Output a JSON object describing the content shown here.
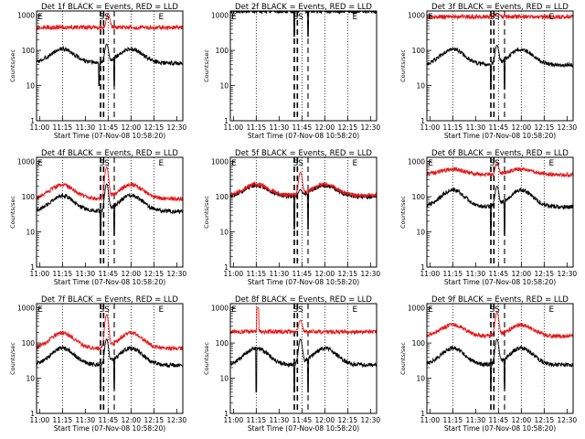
{
  "page": {
    "layout": "3x3 grid of detector count-rate time series"
  },
  "colors": {
    "events": "#000000",
    "lld": "#e41a1c",
    "frame": "#000000",
    "background": "#ffffff"
  },
  "shared": {
    "ylabel": "Counts/sec",
    "xlabel": "Start Time (07-Nov-08 10:58:20)",
    "x_tick_labels": [
      "11:00",
      "11:15",
      "11:30",
      "11:45",
      "12:00",
      "12:15",
      "12:30"
    ],
    "y_tick_labels": [
      "1",
      "10",
      "100",
      "1000"
    ],
    "marker_labels": [
      "E",
      "SS",
      "E"
    ]
  },
  "chart_data": [
    {
      "type": "line",
      "title": "Det 1f BLACK = Events, RED = LLD",
      "xlim_min": [
        0,
        96
      ],
      "ylim": [
        1,
        1000
      ],
      "yscale": "log",
      "dotted_v_lines_min": [
        17,
        47,
        62,
        77
      ],
      "dashed_v_lines_min": [
        42,
        44,
        51
      ],
      "series": [
        {
          "name": "Events",
          "color": "#000000",
          "shape": "wave",
          "base": 60,
          "amp": 0.25,
          "hump_min": [
            17,
            62
          ],
          "peak_min": 46,
          "peak_val": 150,
          "dip_min": [
            41,
            51
          ],
          "dip_val": 10
        },
        {
          "name": "LLD",
          "color": "#e41a1c",
          "shape": "flat",
          "base": 450,
          "peak_min": 47,
          "peak_val": 1100
        }
      ]
    },
    {
      "type": "line",
      "title": "Det 2f BLACK = Events, RED = LLD",
      "xlim_min": [
        0,
        96
      ],
      "ylim": [
        1,
        1000
      ],
      "yscale": "log",
      "dotted_v_lines_min": [
        17,
        47,
        62,
        77
      ],
      "dashed_v_lines_min": [
        42,
        44,
        51
      ],
      "series": [
        {
          "name": "Events",
          "color": "#000000",
          "shape": "flat",
          "base": 1300,
          "peak_min": 47,
          "peak_val": 1500,
          "dip_min": [
            42,
            51
          ],
          "dip_val": 250
        },
        {
          "name": "LLD",
          "color": "#e41a1c",
          "shape": "flat",
          "base": 1600,
          "peak_min": 47,
          "peak_val": 1700
        }
      ]
    },
    {
      "type": "line",
      "title": "Det 3f BLACK = Events, RED = LLD",
      "xlim_min": [
        0,
        96
      ],
      "ylim": [
        1,
        1000
      ],
      "yscale": "log",
      "dotted_v_lines_min": [
        17,
        47,
        62,
        77
      ],
      "dashed_v_lines_min": [
        42,
        44,
        51
      ],
      "series": [
        {
          "name": "Events",
          "color": "#000000",
          "shape": "wave",
          "base": 55,
          "amp": 0.28,
          "hump_min": [
            17,
            62
          ],
          "peak_min": 46,
          "peak_val": 140,
          "dip_min": [
            42,
            51
          ],
          "dip_val": 8
        },
        {
          "name": "LLD",
          "color": "#e41a1c",
          "shape": "flat",
          "base": 900,
          "peak_min": 46,
          "peak_val": 1150
        }
      ]
    },
    {
      "type": "line",
      "title": "Det 4f BLACK = Events, RED = LLD",
      "xlim_min": [
        0,
        96
      ],
      "ylim": [
        1,
        1000
      ],
      "yscale": "log",
      "dotted_v_lines_min": [
        17,
        47,
        62,
        77
      ],
      "dashed_v_lines_min": [
        42,
        44,
        51
      ],
      "series": [
        {
          "name": "Events",
          "color": "#000000",
          "shape": "wave",
          "base": 55,
          "amp": 0.28,
          "hump_min": [
            17,
            62
          ],
          "peak_min": 46,
          "peak_val": 230,
          "dip_min": [
            42,
            51
          ],
          "dip_val": 8
        },
        {
          "name": "LLD",
          "color": "#e41a1c",
          "shape": "wave",
          "base": 120,
          "amp": 0.25,
          "hump_min": [
            17,
            62
          ],
          "peak_min": 46,
          "peak_val": 700
        }
      ]
    },
    {
      "type": "line",
      "title": "Det 5f BLACK = Events, RED = LLD",
      "xlim_min": [
        0,
        96
      ],
      "ylim": [
        1,
        1000
      ],
      "yscale": "log",
      "dotted_v_lines_min": [
        17,
        47,
        62,
        77
      ],
      "dashed_v_lines_min": [
        42,
        44,
        51
      ],
      "series": [
        {
          "name": "Events",
          "color": "#000000",
          "shape": "wave",
          "base": 130,
          "amp": 0.2,
          "hump_min": [
            17,
            62
          ],
          "peak_min": 46,
          "peak_val": 160,
          "dip_min": [
            42,
            51
          ],
          "dip_val": 12
        },
        {
          "name": "LLD",
          "color": "#e41a1c",
          "shape": "wave",
          "base": 140,
          "amp": 0.2,
          "hump_min": [
            17,
            62
          ],
          "peak_min": 46,
          "peak_val": 500
        }
      ]
    },
    {
      "type": "line",
      "title": "Det 6f BLACK = Events, RED = LLD",
      "xlim_min": [
        0,
        96
      ],
      "ylim": [
        1,
        1000
      ],
      "yscale": "log",
      "dotted_v_lines_min": [
        17,
        47,
        62,
        77
      ],
      "dashed_v_lines_min": [
        42,
        44,
        51
      ],
      "series": [
        {
          "name": "Events",
          "color": "#000000",
          "shape": "wave",
          "base": 75,
          "amp": 0.3,
          "hump_min": [
            17,
            62
          ],
          "peak_min": 46,
          "peak_val": 200,
          "dip_min": [
            42,
            51
          ],
          "dip_val": 8
        },
        {
          "name": "LLD",
          "color": "#e41a1c",
          "shape": "wave",
          "base": 480,
          "amp": 0.1,
          "hump_min": [
            17,
            62
          ],
          "peak_min": 46,
          "peak_val": 900
        }
      ]
    },
    {
      "type": "line",
      "title": "Det 7f BLACK = Events, RED = LLD",
      "xlim_min": [
        0,
        96
      ],
      "ylim": [
        1,
        1000
      ],
      "yscale": "log",
      "dotted_v_lines_min": [
        17,
        47,
        62,
        77
      ],
      "dashed_v_lines_min": [
        42,
        44,
        51
      ],
      "series": [
        {
          "name": "Events",
          "color": "#000000",
          "shape": "wave",
          "base": 35,
          "amp": 0.3,
          "hump_min": [
            17,
            62
          ],
          "peak_min": 46,
          "peak_val": 130,
          "dip_min": [
            42,
            51
          ],
          "dip_val": 5
        },
        {
          "name": "LLD",
          "color": "#e41a1c",
          "shape": "wave",
          "base": 100,
          "amp": 0.28,
          "hump_min": [
            17,
            62
          ],
          "peak_min": 46,
          "peak_val": 650
        }
      ]
    },
    {
      "type": "line",
      "title": "Det 8f BLACK = Events, RED = LLD",
      "xlim_min": [
        0,
        96
      ],
      "ylim": [
        1,
        1000
      ],
      "yscale": "log",
      "dotted_v_lines_min": [
        17,
        47,
        62,
        77
      ],
      "dashed_v_lines_min": [
        42,
        44,
        51
      ],
      "series": [
        {
          "name": "Events",
          "color": "#000000",
          "shape": "wave",
          "base": 35,
          "amp": 0.3,
          "hump_min": [
            17,
            62
          ],
          "peak_min": 46,
          "peak_val": 130,
          "dip_min": [
            17,
            42,
            51
          ],
          "dip_val": 4
        },
        {
          "name": "LLD",
          "color": "#e41a1c",
          "shape": "flat",
          "base": 210,
          "peak_min": 46,
          "peak_val": 450,
          "spike_min": [
            18
          ],
          "spike_val": 1000
        }
      ]
    },
    {
      "type": "line",
      "title": "Det 9f BLACK = Events, RED = LLD",
      "xlim_min": [
        0,
        96
      ],
      "ylim": [
        1,
        1000
      ],
      "yscale": "log",
      "dotted_v_lines_min": [
        17,
        47,
        62,
        77
      ],
      "dashed_v_lines_min": [
        42,
        44,
        51
      ],
      "series": [
        {
          "name": "Events",
          "color": "#000000",
          "shape": "wave",
          "base": 35,
          "amp": 0.3,
          "hump_min": [
            17,
            62
          ],
          "peak_min": 46,
          "peak_val": 130,
          "dip_min": [
            42,
            51
          ],
          "dip_val": 5
        },
        {
          "name": "LLD",
          "color": "#e41a1c",
          "shape": "wave",
          "base": 200,
          "amp": 0.2,
          "hump_min": [
            17,
            62
          ],
          "peak_min": 46,
          "peak_val": 750
        }
      ]
    }
  ]
}
